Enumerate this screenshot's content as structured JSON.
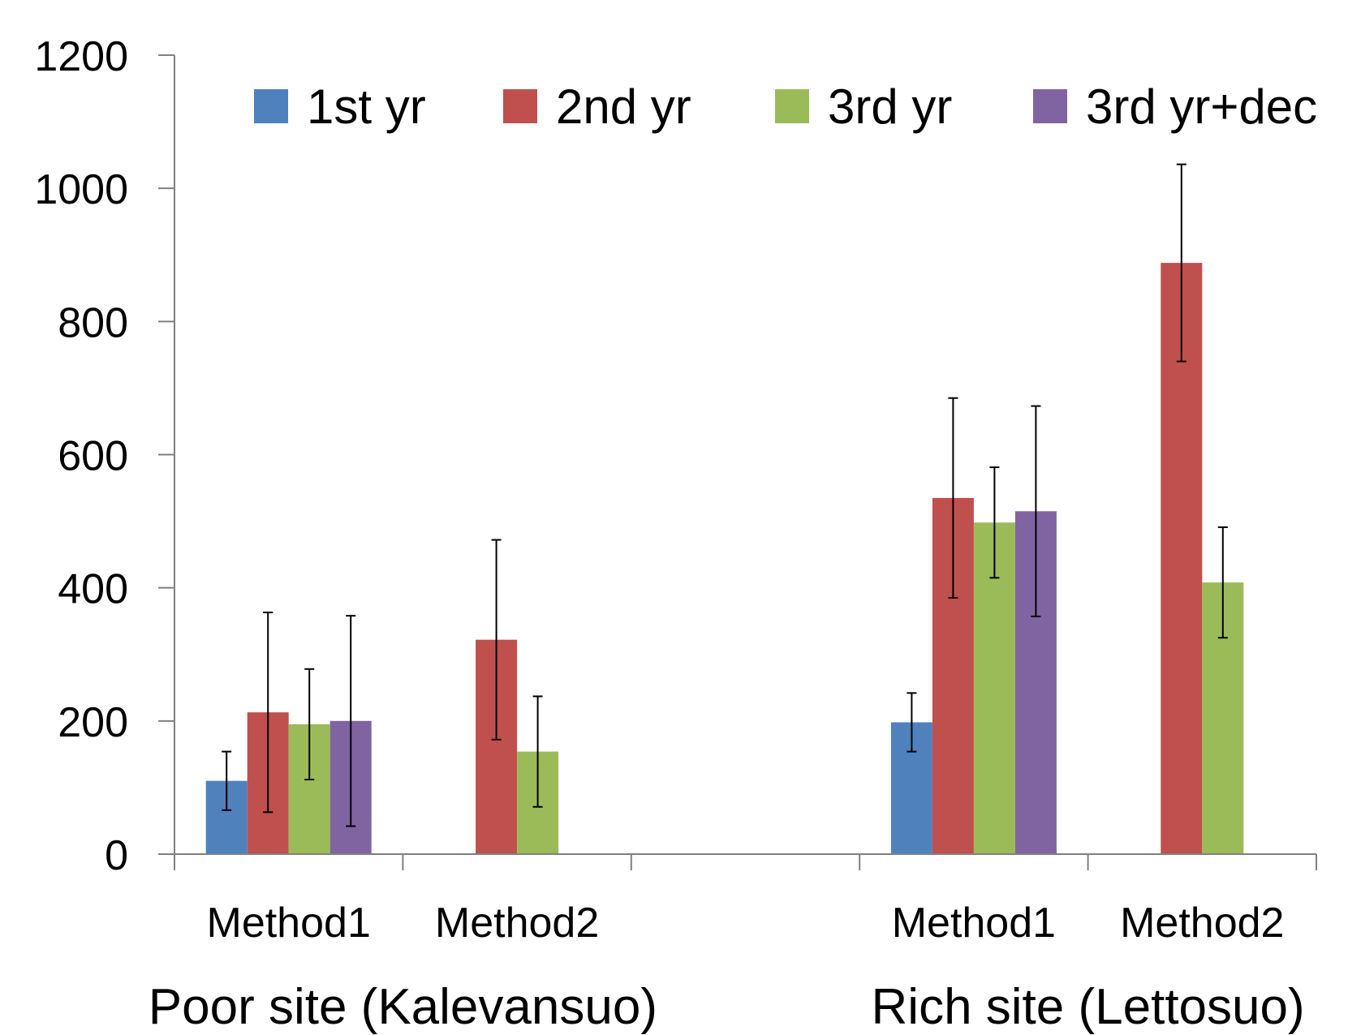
{
  "chart_data": {
    "type": "bar",
    "title": "",
    "xlabel": "",
    "ylabel": "",
    "ylim": [
      0,
      1200
    ],
    "yticks": [
      0,
      200,
      400,
      600,
      800,
      1000,
      1200
    ],
    "grid": false,
    "legend_position": "top",
    "colors": [
      "#4F81BD",
      "#C0504D",
      "#9BBB59",
      "#8064A2"
    ],
    "error_bar_color": "#000000",
    "axis_color": "#808080",
    "groups": [
      {
        "label": "Poor site (Kalevansuo)",
        "categories": [
          "Method1",
          "Method2"
        ]
      },
      {
        "label": "Rich site (Lettosuo)",
        "categories": [
          "Method1",
          "Method2"
        ]
      }
    ],
    "categories": [
      "Method1",
      "Method2",
      "",
      "Method1",
      "Method2"
    ],
    "series": [
      {
        "name": "1st yr",
        "values": [
          110,
          null,
          null,
          198,
          null
        ],
        "errors": [
          44,
          null,
          null,
          44,
          null
        ]
      },
      {
        "name": "2nd yr",
        "values": [
          213,
          322,
          null,
          535,
          888
        ],
        "errors": [
          150,
          150,
          null,
          150,
          148
        ]
      },
      {
        "name": "3rd yr",
        "values": [
          195,
          154,
          null,
          498,
          408
        ],
        "errors": [
          83,
          83,
          null,
          83,
          83
        ]
      },
      {
        "name": "3rd yr+dec",
        "values": [
          200,
          null,
          null,
          515,
          null
        ],
        "errors": [
          158,
          null,
          null,
          158,
          null
        ]
      }
    ]
  }
}
